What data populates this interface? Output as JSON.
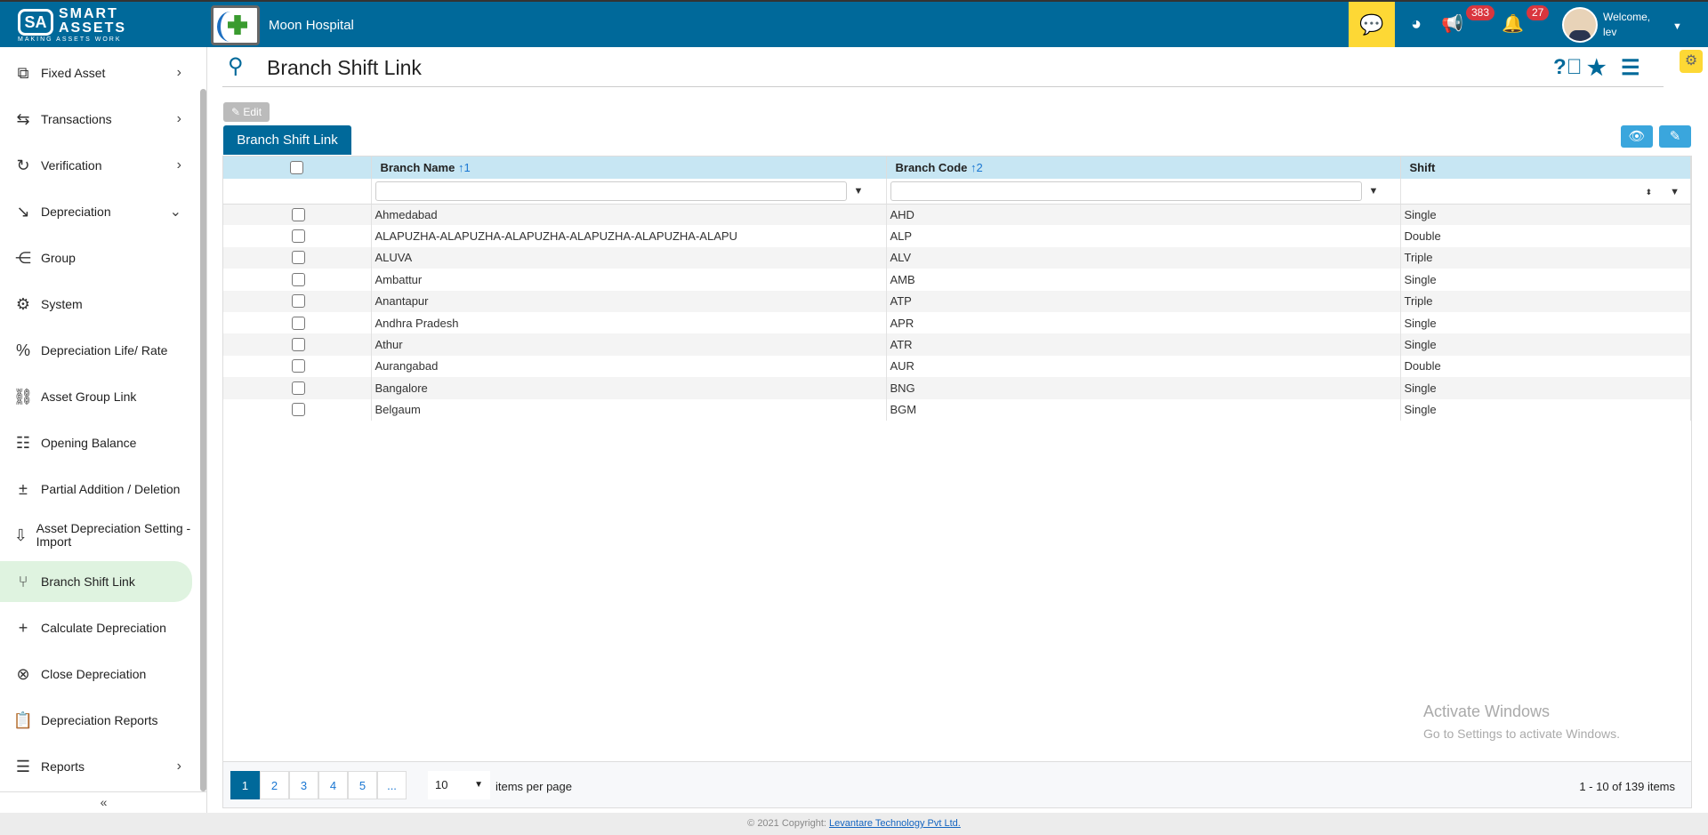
{
  "header": {
    "brand_line1": "SMART",
    "brand_line2": "ASSETS",
    "brand_tagline": "MAKING ASSETS WORK",
    "brand_mark": "SA",
    "org_name": "Moon Hospital",
    "announcements_count": "383",
    "notifications_count": "27",
    "welcome": "Welcome,",
    "user": "lev"
  },
  "sidebar": {
    "items": [
      {
        "label": "Fixed Asset",
        "icon": "copy-icon",
        "chevron": "›"
      },
      {
        "label": "Transactions",
        "icon": "exchange-icon",
        "chevron": "›"
      },
      {
        "label": "Verification",
        "icon": "check-cycle-icon",
        "chevron": "›"
      },
      {
        "label": "Depreciation",
        "icon": "chart-down-icon",
        "chevron": "⌄"
      },
      {
        "label": "Group",
        "icon": "share-icon"
      },
      {
        "label": "System",
        "icon": "gear-chart-icon"
      },
      {
        "label": "Depreciation Life/ Rate",
        "icon": "percent-chart-icon"
      },
      {
        "label": "Asset Group Link",
        "icon": "link-chart-icon"
      },
      {
        "label": "Opening Balance",
        "icon": "balance-icon"
      },
      {
        "label": "Partial Addition / Deletion",
        "icon": "plus-minus-icon"
      },
      {
        "label": "Asset Depreciation Setting - Import",
        "icon": "import-icon"
      },
      {
        "label": "Branch Shift Link",
        "icon": "branch-icon",
        "active": true
      },
      {
        "label": "Calculate Depreciation",
        "icon": "calculate-icon"
      },
      {
        "label": "Close Depreciation",
        "icon": "close-chart-icon"
      },
      {
        "label": "Depreciation Reports",
        "icon": "clipboard-icon"
      },
      {
        "label": "Reports",
        "icon": "report-icon",
        "chevron": "›"
      }
    ],
    "collapse": "«"
  },
  "page": {
    "title": "Branch Shift Link",
    "edit_label": "Edit",
    "tab_label": "Branch Shift Link"
  },
  "table": {
    "columns": [
      {
        "label": "Branch Name",
        "sort": "↑1"
      },
      {
        "label": "Branch Code",
        "sort": "↑2"
      },
      {
        "label": "Shift"
      }
    ],
    "rows": [
      [
        "Ahmedabad",
        "AHD",
        "Single"
      ],
      [
        "ALAPUZHA-ALAPUZHA-ALAPUZHA-ALAPUZHA-ALAPUZHA-ALAPU",
        "ALP",
        "Double"
      ],
      [
        "ALUVA",
        "ALV",
        "Triple"
      ],
      [
        "Ambattur",
        "AMB",
        "Single"
      ],
      [
        "Anantapur",
        "ATP",
        "Triple"
      ],
      [
        "Andhra Pradesh",
        "APR",
        "Single"
      ],
      [
        "Athur",
        "ATR",
        "Single"
      ],
      [
        "Aurangabad",
        "AUR",
        "Double"
      ],
      [
        "Bangalore",
        "BNG",
        "Single"
      ],
      [
        "Belgaum",
        "BGM",
        "Single"
      ]
    ]
  },
  "pager": {
    "pages": [
      "1",
      "2",
      "3",
      "4",
      "5",
      "..."
    ],
    "page_size": "10",
    "items_per_page": "items per page",
    "info": "1 - 10 of 139 items"
  },
  "watermark": {
    "line1": "Activate Windows",
    "line2": "Go to Settings to activate Windows."
  },
  "footer": {
    "text": "© 2021 Copyright: ",
    "link": "Levantare Technology Pvt Ltd."
  },
  "colors": {
    "primary": "#00699a",
    "accent_yellow": "#fdd835",
    "badge": "#d9363e",
    "header_row": "#c7e6f3",
    "active_item": "#dff3e0"
  }
}
